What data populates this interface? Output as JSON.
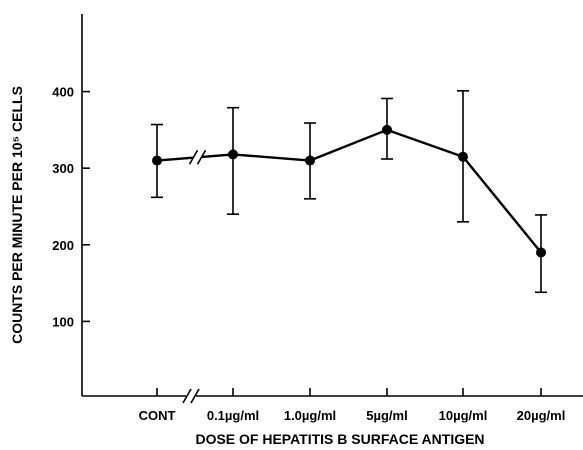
{
  "chart_data": {
    "type": "line",
    "categories": [
      "CONT",
      "0.1µg/ml",
      "1.0µg/ml",
      "5µg/ml",
      "10µg/ml",
      "20µg/ml"
    ],
    "values": [
      310,
      318,
      310,
      350,
      315,
      190
    ],
    "error_low": [
      262,
      240,
      260,
      312,
      230,
      138
    ],
    "error_high": [
      357,
      379,
      359,
      391,
      401,
      239
    ],
    "xlabel": "DOSE OF HEPATITIS B SURFACE ANTIGEN",
    "ylabel": "COUNTS PER MINUTE PER 10⁵ CELLS",
    "yticks": [
      100,
      200,
      300,
      400
    ],
    "ylim": [
      0,
      500
    ],
    "axis_break": "between CONT and 0.1µg/ml",
    "grid": false,
    "line_color": "#000000"
  }
}
